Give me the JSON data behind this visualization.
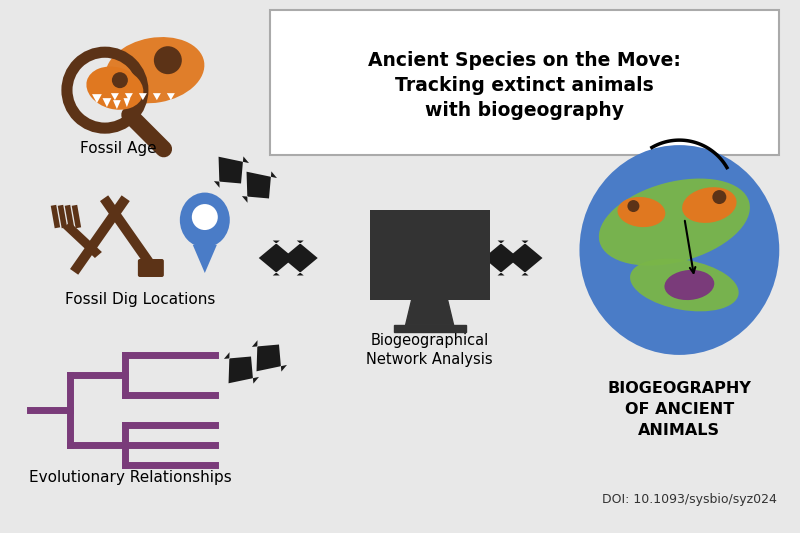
{
  "bg_color": "#e8e8e8",
  "title_box_color": "#ffffff",
  "title_text": "Ancient Species on the Move:\nTracking extinct animals\nwith biogeography",
  "title_fontsize": 14,
  "title_bold": true,
  "fossil_age_label": "Fossil Age",
  "fossil_dig_label": "Fossil Dig Locations",
  "evol_rel_label": "Evolutionary Relationships",
  "bio_network_label": "Biogeographical\nNetwork Analysis",
  "bio_ancient_label": "BIOGEOGRAPHY\nOF ANCIENT\nANIMALS",
  "doi_text": "DOI: 10.1093/sysbio/syz024",
  "arrow_color": "#1a1a1a",
  "brown_color": "#5c3317",
  "orange_color": "#e07820",
  "blue_color": "#4a7cc7",
  "green_color": "#7ab648",
  "purple_color": "#7a3b7a",
  "dark_color": "#333333",
  "magnifier_color": "#5c3317",
  "skull_color": "#e07820"
}
